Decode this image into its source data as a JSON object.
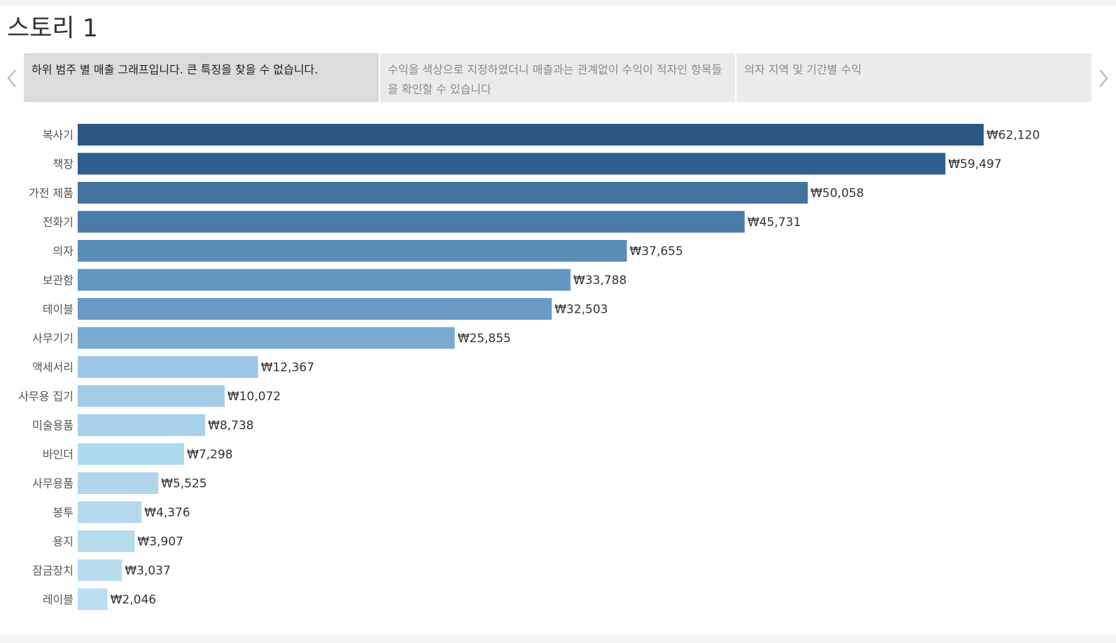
{
  "story": {
    "title": "스토리 1"
  },
  "tabs": [
    {
      "label": "하위 범주 별 매출 그래프입니다. 큰 특징을 찾을 수 없습니다.",
      "active": true
    },
    {
      "label": "수익을 색상으로 지정하였더니 매출과는 관계없이 수익이 적자인 항목들을 확인할 수 있습니다",
      "active": false
    },
    {
      "label": "의자 지역 및 기간별 수익",
      "active": false
    }
  ],
  "nav": {
    "prev_icon": "chevron-left-icon",
    "next_icon": "chevron-right-icon"
  },
  "chart_data": {
    "type": "bar",
    "orientation": "horizontal",
    "currency": "₩",
    "categories": [
      "복사기",
      "책장",
      "가전 제품",
      "전화기",
      "의자",
      "보관함",
      "테이블",
      "사무기기",
      "액세서리",
      "사무용 집기",
      "미술용품",
      "바인더",
      "사무용품",
      "봉투",
      "용지",
      "잠금장치",
      "레이블"
    ],
    "values": [
      62120,
      59497,
      50058,
      45731,
      37655,
      33788,
      32503,
      25855,
      12367,
      10072,
      8738,
      7298,
      5525,
      4376,
      3907,
      3037,
      2046
    ],
    "value_labels": [
      "₩62,120",
      "₩59,497",
      "₩50,058",
      "₩45,731",
      "₩37,655",
      "₩33,788",
      "₩32,503",
      "₩25,855",
      "₩12,367",
      "₩10,072",
      "₩8,738",
      "₩7,298",
      "₩5,525",
      "₩4,376",
      "₩3,907",
      "₩3,037",
      "₩2,046"
    ],
    "colors": [
      "#2b5785",
      "#2f5e8c",
      "#43739f",
      "#4a7aa8",
      "#5a8dba",
      "#6396c2",
      "#6a9bc6",
      "#7aaad0",
      "#9dc7e8",
      "#a2cce8",
      "#a8d1ea",
      "#addaef",
      "#b1d6ec",
      "#b4d9ee",
      "#b6dbef",
      "#b8dcf0",
      "#bbdef1"
    ],
    "title": "",
    "xlabel": "",
    "ylabel": "",
    "xlim": [
      0,
      62120
    ],
    "grid": false,
    "legend": "none"
  }
}
